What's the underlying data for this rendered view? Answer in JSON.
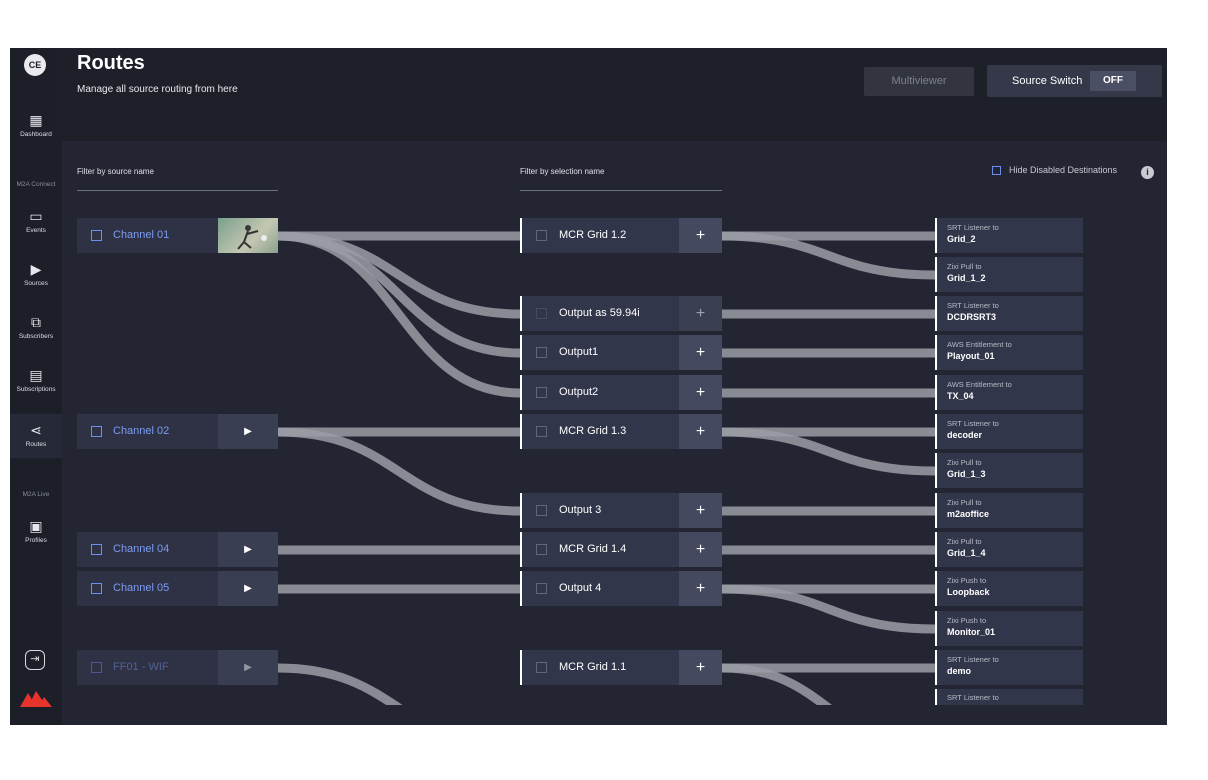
{
  "sidebar": {
    "logo": "CE",
    "items": [
      {
        "label": "Dashboard",
        "icon": "dashboard-icon",
        "glyph": "▦"
      },
      {
        "label": "Events",
        "icon": "events-icon",
        "glyph": "▭"
      },
      {
        "label": "Sources",
        "icon": "sources-icon",
        "glyph": "▶"
      },
      {
        "label": "Subscribers",
        "icon": "subscribers-icon",
        "glyph": "⧉"
      },
      {
        "label": "Subscriptions",
        "icon": "subscriptions-icon",
        "glyph": "▤"
      },
      {
        "label": "Routes",
        "icon": "routes-icon",
        "glyph": "⋖"
      },
      {
        "label": "Profiles",
        "icon": "profiles-icon",
        "glyph": "▣"
      }
    ],
    "sections": [
      "M2A Connect",
      "M2A Live"
    ],
    "logout_glyph": "⇥"
  },
  "header": {
    "title": "Routes",
    "subtitle": "Manage all source routing from here",
    "multiviewer": "Multiviewer",
    "source_switch": "Source Switch",
    "source_switch_state": "OFF"
  },
  "filters": {
    "source": "Filter by source name",
    "selection": "Filter by selection name",
    "hide_disabled": "Hide Disabled Destinations"
  },
  "sources": [
    {
      "name": "Channel 01",
      "thumb": "image"
    },
    {
      "name": "Channel 02",
      "thumb": "play"
    },
    {
      "name": "Channel 04",
      "thumb": "play"
    },
    {
      "name": "Channel 05",
      "thumb": "play"
    },
    {
      "name": "FF01 - WIF",
      "thumb": "play",
      "disabled": true
    }
  ],
  "selections": [
    {
      "name": "MCR Grid 1.2"
    },
    {
      "name": "Output as 59.94i",
      "disabled": true
    },
    {
      "name": "Output1"
    },
    {
      "name": "Output2"
    },
    {
      "name": "MCR Grid 1.3"
    },
    {
      "name": "Output 3"
    },
    {
      "name": "MCR Grid 1.4"
    },
    {
      "name": "Output 4"
    },
    {
      "name": "MCR Grid 1.1"
    }
  ],
  "destinations": [
    {
      "type": "SRT Listener to",
      "name": "Grid_2"
    },
    {
      "type": "Zixi Pull to",
      "name": "Grid_1_2"
    },
    {
      "type": "SRT Listener to",
      "name": "DCDRSRT3"
    },
    {
      "type": "AWS Entitlement to",
      "name": "Playout_01"
    },
    {
      "type": "AWS Entitlement to",
      "name": "TX_04"
    },
    {
      "type": "SRT Listener to",
      "name": "decoder"
    },
    {
      "type": "Zixi Pull to",
      "name": "Grid_1_3"
    },
    {
      "type": "Zixi Pull to",
      "name": "m2aoffice"
    },
    {
      "type": "Zixi Pull to",
      "name": "Grid_1_4"
    },
    {
      "type": "Zixi Push to",
      "name": "Loopback"
    },
    {
      "type": "Zixi Push to",
      "name": "Monitor_01"
    },
    {
      "type": "SRT Listener to",
      "name": "demo"
    },
    {
      "type": "SRT Listener to",
      "name": ""
    }
  ],
  "play_glyph": "▶",
  "plus_glyph": "+",
  "info_glyph": "i"
}
